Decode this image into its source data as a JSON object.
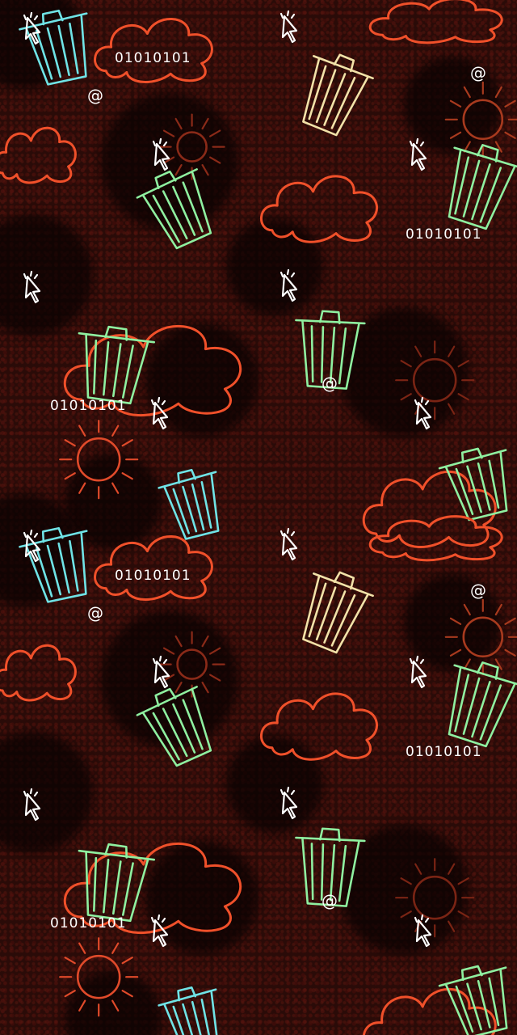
{
  "wallpaper": {
    "binary_text": "01010101",
    "at_symbol": "@",
    "colors": {
      "background": "#2a0b08",
      "cloud": "#f0502a",
      "sun": "#e04a2a",
      "trash_cyan": "#6fe3e6",
      "trash_green": "#8ff0a0",
      "trash_cream": "#f2e2a8",
      "cursor": "#ffffff"
    },
    "icons": [
      "cursor-icon",
      "trash-can-icon",
      "cloud-icon",
      "sun-icon"
    ]
  }
}
